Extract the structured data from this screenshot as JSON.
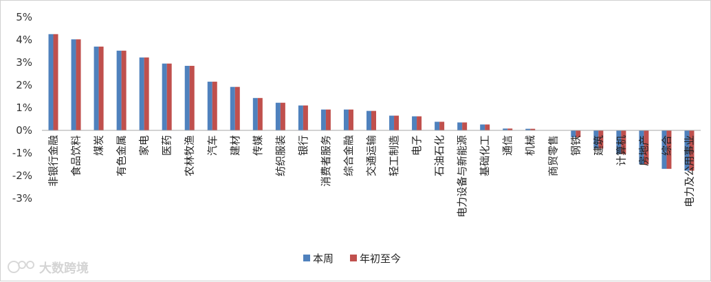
{
  "chart_data": {
    "type": "bar",
    "categories": [
      "非银行金融",
      "食品饮料",
      "煤炭",
      "有色金属",
      "家电",
      "医药",
      "农林牧渔",
      "汽车",
      "建材",
      "传媒",
      "纺织服装",
      "银行",
      "消费者服务",
      "综合金融",
      "交通运输",
      "轻工制造",
      "电子",
      "石油石化",
      "电力设备与新能源",
      "基础化工",
      "通信",
      "机械",
      "商贸零售",
      "钢铁",
      "建筑",
      "计算机",
      "房地产",
      "综合",
      "电力及公用事业"
    ],
    "series": [
      {
        "name": "本周",
        "color": "#4F81BD",
        "values": [
          4.25,
          4.02,
          3.7,
          3.52,
          3.22,
          2.95,
          2.85,
          2.15,
          1.92,
          1.43,
          1.22,
          1.1,
          0.92,
          0.92,
          0.86,
          0.65,
          0.62,
          0.38,
          0.35,
          0.26,
          0.08,
          0.07,
          0.0,
          -0.3,
          -0.8,
          -1.05,
          -1.5,
          -1.7,
          -1.78
        ]
      },
      {
        "name": "年初至今",
        "color": "#C0504D",
        "values": [
          4.25,
          4.02,
          3.7,
          3.52,
          3.22,
          2.95,
          2.85,
          2.15,
          1.92,
          1.43,
          1.22,
          1.1,
          0.92,
          0.92,
          0.86,
          0.65,
          0.62,
          0.38,
          0.35,
          0.26,
          0.08,
          0.07,
          0.0,
          -0.3,
          -0.8,
          -1.05,
          -1.5,
          -1.7,
          -1.78
        ]
      }
    ],
    "y_ticks": [
      "5%",
      "4%",
      "3%",
      "2%",
      "1%",
      "0%",
      "-1%",
      "-2%",
      "-3%"
    ],
    "ylim": [
      -3,
      5
    ],
    "grid": false,
    "legend_position": "bottom-center"
  },
  "watermark": {
    "text": "大数跨境",
    "icon": "brand-logo-icon"
  }
}
